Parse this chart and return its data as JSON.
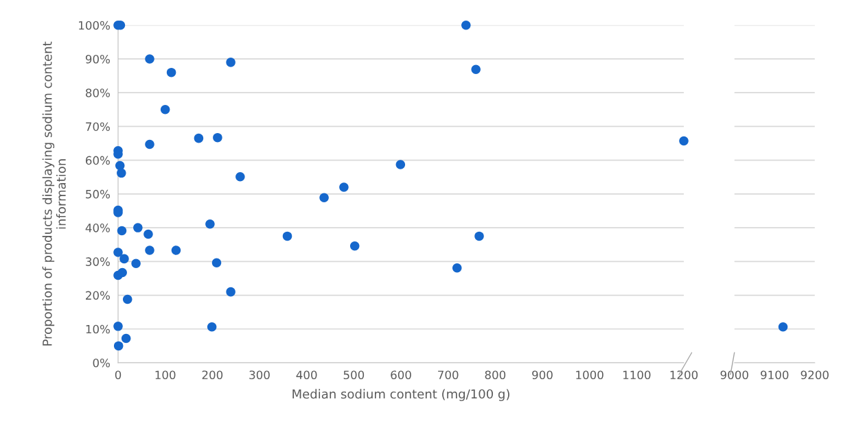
{
  "chart_data": [
    {
      "type": "scatter",
      "xlabel": "Median sodium content (mg/100 g)",
      "ylabel": "Proportion of products displaying sodium content\ninformation",
      "x": [
        0,
        5,
        67,
        113,
        239,
        100,
        67,
        171,
        211,
        0,
        0,
        4,
        7,
        259,
        0,
        0,
        8,
        42,
        64,
        67,
        123,
        195,
        209,
        0,
        13,
        38,
        0,
        9,
        239,
        20,
        0,
        199,
        17,
        1,
        738,
        759,
        599,
        479,
        437,
        359,
        502,
        766,
        719,
        1200
      ],
      "series": [
        {
          "color": "#1567cc",
          "values": [
            100,
            100,
            90,
            86,
            89,
            75,
            64.7,
            66.5,
            66.7,
            62.8,
            61.8,
            58.4,
            56.2,
            55.1,
            45.2,
            44.5,
            39.1,
            40,
            38.1,
            33.3,
            33.3,
            41.1,
            29.6,
            32.7,
            30.8,
            29.4,
            25.9,
            26.7,
            21,
            18.8,
            10.8,
            10.6,
            7.2,
            5,
            100,
            86.9,
            58.7,
            52,
            48.9,
            37.5,
            34.6,
            37.5,
            28.1,
            65.7
          ]
        }
      ],
      "xlim": [
        0,
        1200
      ],
      "xticks": [
        0,
        100,
        200,
        300,
        400,
        500,
        600,
        700,
        800,
        900,
        1000,
        1100,
        1200
      ],
      "ylim": [
        0,
        100
      ],
      "yticks": [
        {
          "value": 0,
          "label": "0%"
        },
        {
          "value": 10,
          "label": "10%"
        },
        {
          "value": 20,
          "label": "20%"
        },
        {
          "value": 30,
          "label": "30%"
        },
        {
          "value": 40,
          "label": "40%"
        },
        {
          "value": 50,
          "label": "50%"
        },
        {
          "value": 60,
          "label": "60%"
        },
        {
          "value": 70,
          "label": "70%"
        },
        {
          "value": 80,
          "label": "80%"
        },
        {
          "value": 90,
          "label": "90%"
        },
        {
          "value": 100,
          "label": "100%"
        }
      ],
      "grid": "y",
      "marker": "circle"
    },
    {
      "type": "scatter",
      "x": [
        9121
      ],
      "series": [
        {
          "color": "#1567cc",
          "values": [
            10.6
          ]
        }
      ],
      "xlim": [
        9000,
        9200
      ],
      "xticks": [
        9000,
        9100,
        9200
      ],
      "ylim": [
        0,
        100
      ],
      "yticks": [
        {
          "value": 0,
          "label": null
        },
        {
          "value": 10,
          "label": null
        },
        {
          "value": 20,
          "label": null
        },
        {
          "value": 30,
          "label": null
        },
        {
          "value": 40,
          "label": null
        },
        {
          "value": 50,
          "label": null
        },
        {
          "value": 60,
          "label": null
        },
        {
          "value": 70,
          "label": null
        },
        {
          "value": 80,
          "label": null
        },
        {
          "value": 90,
          "label": null
        },
        {
          "value": 100,
          "label": null
        }
      ],
      "tick_labels": "x",
      "grid": "y",
      "marker": "circle"
    }
  ]
}
